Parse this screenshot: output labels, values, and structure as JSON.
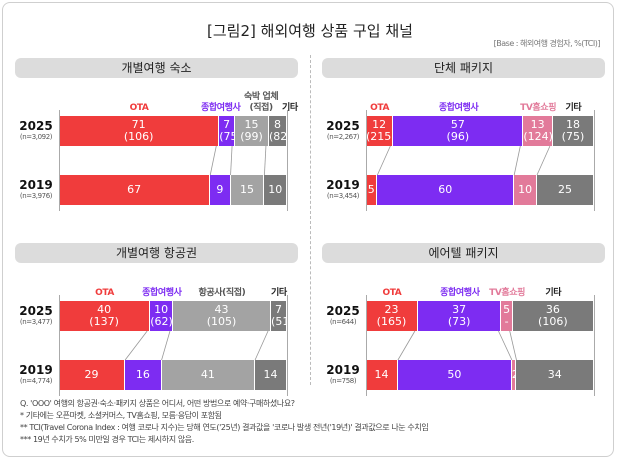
{
  "title": "[그림2] 해외여행 상품 구입 채널",
  "base_note": "[Base : 해외여행 경험자, %(TCI)]",
  "chart_data": [
    {
      "type": "bar",
      "stacked": true,
      "orientation": "horizontal",
      "title": "개별여행 숙소",
      "categories": [
        {
          "label": "OTA",
          "color": "#f03c3c"
        },
        {
          "label": "종합여행사",
          "color": "#7d2cf2"
        },
        {
          "label": "숙박 업체\n(직접)",
          "color": "#a3a3a3"
        },
        {
          "label": "기타",
          "color": "#7a7a7a"
        }
      ],
      "rows": [
        {
          "year": "2025",
          "n": "(n=3,092)",
          "values": [
            71,
            7,
            15,
            8
          ],
          "tci": [
            "(106)",
            "(75)",
            "(99)",
            "(82)"
          ]
        },
        {
          "year": "2019",
          "n": "(n=3,976)",
          "values": [
            67,
            9,
            15,
            10
          ],
          "tci": [
            "",
            "",
            "",
            ""
          ]
        }
      ]
    },
    {
      "type": "bar",
      "stacked": true,
      "orientation": "horizontal",
      "title": "단체 패키지",
      "categories": [
        {
          "label": "OTA",
          "color": "#f03c3c"
        },
        {
          "label": "종합여행사",
          "color": "#7d2cf2"
        },
        {
          "label": "TV홈쇼핑",
          "color": "#e27a9a"
        },
        {
          "label": "기타",
          "color": "#7a7a7a"
        }
      ],
      "rows": [
        {
          "year": "2025",
          "n": "(n=2,267)",
          "values": [
            12,
            57,
            13,
            18
          ],
          "tci": [
            "(215)",
            "(96)",
            "(124)",
            "(75)"
          ]
        },
        {
          "year": "2019",
          "n": "(n=3,454)",
          "values": [
            5,
            60,
            10,
            25
          ],
          "tci": [
            "",
            "",
            "",
            ""
          ]
        }
      ]
    },
    {
      "type": "bar",
      "stacked": true,
      "orientation": "horizontal",
      "title": "개별여행 항공권",
      "categories": [
        {
          "label": "OTA",
          "color": "#f03c3c"
        },
        {
          "label": "종합여행사",
          "color": "#7d2cf2"
        },
        {
          "label": "항공사(직접)",
          "color": "#a3a3a3"
        },
        {
          "label": "기타",
          "color": "#7a7a7a"
        }
      ],
      "rows": [
        {
          "year": "2025",
          "n": "(n=3,477)",
          "values": [
            40,
            10,
            43,
            7
          ],
          "tci": [
            "(137)",
            "(62)",
            "(105)",
            "(51)"
          ]
        },
        {
          "year": "2019",
          "n": "(n=4,774)",
          "values": [
            29,
            16,
            41,
            14
          ],
          "tci": [
            "",
            "",
            "",
            ""
          ]
        }
      ]
    },
    {
      "type": "bar",
      "stacked": true,
      "orientation": "horizontal",
      "title": "에어텔 패키지",
      "categories": [
        {
          "label": "OTA",
          "color": "#f03c3c"
        },
        {
          "label": "종합여행사",
          "color": "#7d2cf2"
        },
        {
          "label": "TV홈쇼핑",
          "color": "#e27a9a"
        },
        {
          "label": "기타",
          "color": "#7a7a7a"
        }
      ],
      "rows": [
        {
          "year": "2025",
          "n": "(n=644)",
          "values": [
            23,
            37,
            5,
            36
          ],
          "tci": [
            "(165)",
            "(73)",
            "-",
            "(106)"
          ]
        },
        {
          "year": "2019",
          "n": "(n=758)",
          "values": [
            14,
            50,
            2,
            34
          ],
          "tci": [
            "",
            "",
            "",
            ""
          ]
        }
      ]
    }
  ],
  "notes": [
    "Q. 'OOO' 여행의 항공권·숙소·패키지 상품은 어디서, 어떤 방법으로 예약·구매하셨나요?",
    "* 기타에는 오픈마켓, 소셜커머스, TV홈쇼핑, 모름·응답이 포함됨",
    "** TCI(Travel Corona Index : 여행 코로나 지수)는 당해 연도('25년) 결과값을 '코로나 발생 전년('19년)' 결과값으로 나눈 수치임",
    "*** 19년 수치가 5% 미만일 경우 TCI는 제시하지 않음."
  ]
}
